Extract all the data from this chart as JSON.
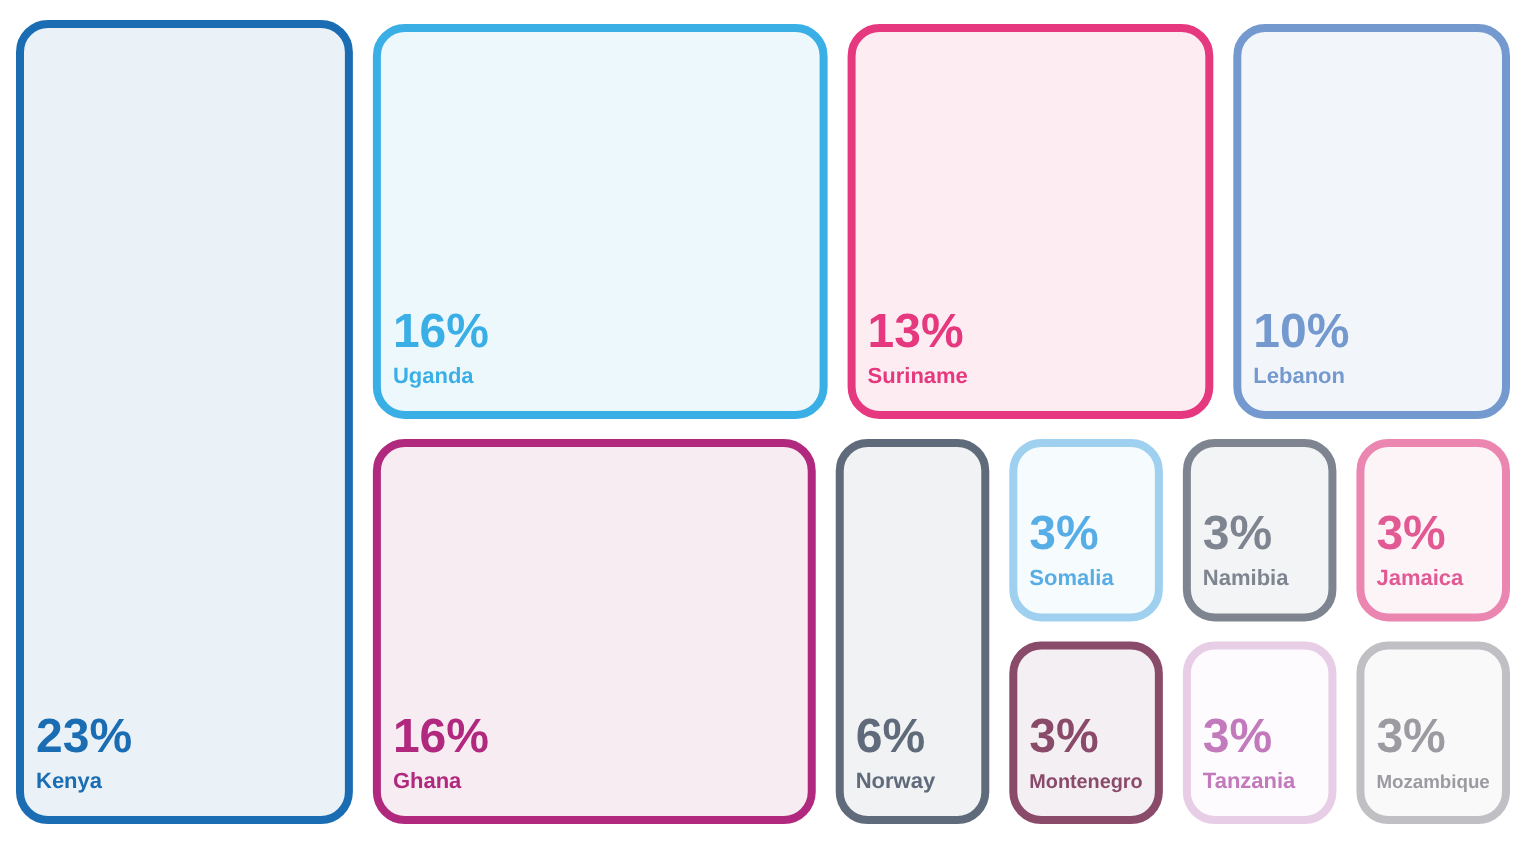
{
  "chart_data": {
    "type": "other",
    "categories": [
      "Kenya",
      "Uganda",
      "Suriname",
      "Lebanon",
      "Ghana",
      "Norway",
      "Somalia",
      "Namibia",
      "Jamaica",
      "Montenegro",
      "Tanzania",
      "Mozambique"
    ],
    "values": [
      23,
      16,
      13,
      10,
      16,
      6,
      3,
      3,
      3,
      3,
      3,
      3
    ],
    "value_labels": [
      "23%",
      "16%",
      "13%",
      "10%",
      "16%",
      "6%",
      "3%",
      "3%",
      "3%",
      "3%",
      "3%",
      "3%"
    ],
    "colors": [
      "#1a6db3",
      "#3aafe6",
      "#e6387e",
      "#7399cf",
      "#b0297f",
      "#5f6b7a",
      "#9fd0f0",
      "#7e8590",
      "#ea86b0",
      "#8a4a6a",
      "#e8cde6",
      "#c0c0c4"
    ]
  }
}
